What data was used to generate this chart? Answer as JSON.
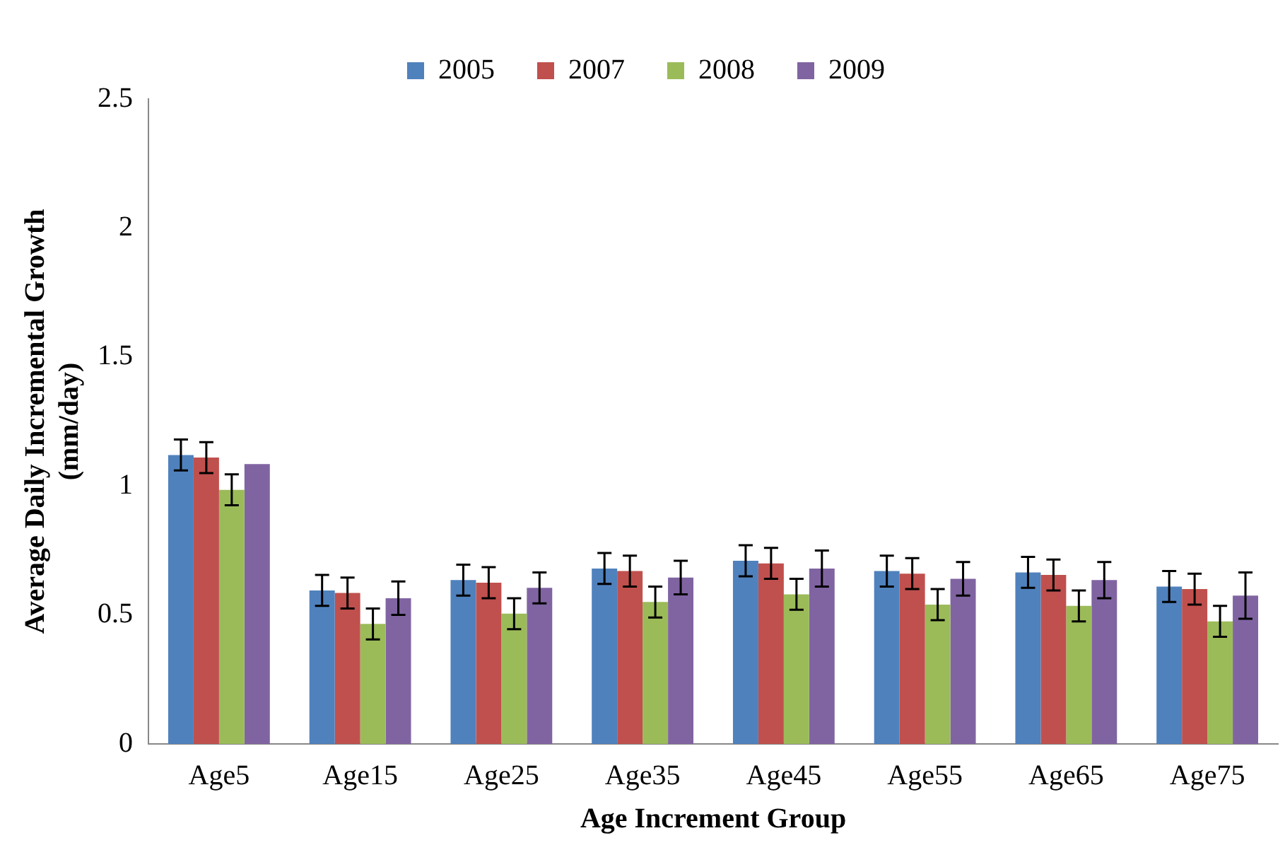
{
  "chart_data": {
    "type": "bar",
    "xlabel": "Age Increment Group",
    "ylabel": "Average Daily Incremental Growth (mm/day)",
    "categories": [
      "Age5",
      "Age15",
      "Age25",
      "Age35",
      "Age45",
      "Age55",
      "Age65",
      "Age75"
    ],
    "ylim": [
      0,
      2.5
    ],
    "yticks": [
      0,
      0.5,
      1,
      1.5,
      2,
      2.5
    ],
    "grid": false,
    "legend": "top",
    "series": [
      {
        "name": "2005",
        "color": "#4f81bd",
        "values": [
          1.12,
          0.595,
          0.635,
          0.68,
          0.71,
          0.67,
          0.665,
          0.61
        ],
        "errors": [
          0.06,
          0.06,
          0.06,
          0.06,
          0.06,
          0.06,
          0.06,
          0.06
        ]
      },
      {
        "name": "2007",
        "color": "#c0504d",
        "values": [
          1.11,
          0.585,
          0.625,
          0.67,
          0.7,
          0.66,
          0.655,
          0.6
        ],
        "errors": [
          0.06,
          0.06,
          0.06,
          0.06,
          0.06,
          0.06,
          0.06,
          0.06
        ]
      },
      {
        "name": "2008",
        "color": "#9bbb59",
        "values": [
          0.985,
          0.465,
          0.505,
          0.55,
          0.58,
          0.54,
          0.535,
          0.475
        ],
        "errors": [
          0.06,
          0.06,
          0.06,
          0.06,
          0.06,
          0.06,
          0.06,
          0.06
        ]
      },
      {
        "name": "2009",
        "color": "#8064a2",
        "values": [
          1.085,
          0.565,
          0.605,
          0.645,
          0.68,
          0.64,
          0.635,
          0.575
        ],
        "errors": [
          null,
          0.065,
          0.06,
          0.065,
          0.07,
          0.065,
          0.07,
          0.09
        ]
      }
    ]
  }
}
